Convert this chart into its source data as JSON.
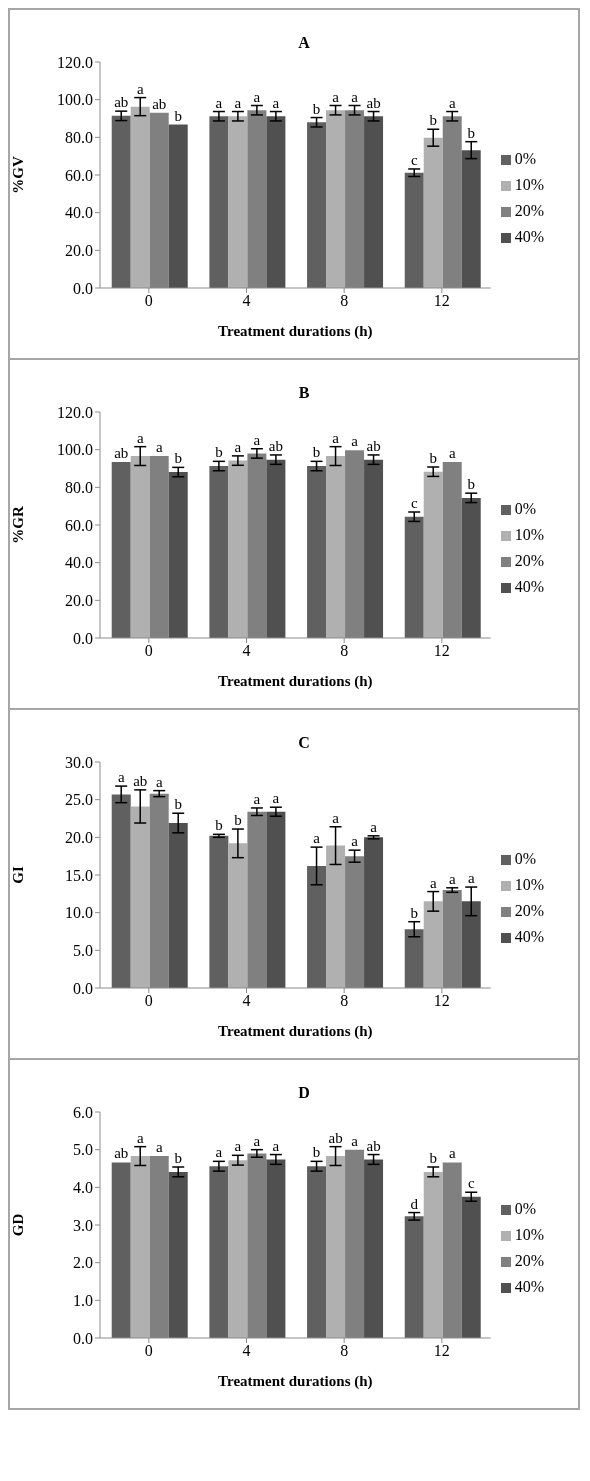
{
  "chart_data": [
    {
      "type": "bar",
      "title": "A",
      "xlabel": "Treatment durations (h)",
      "ylabel": "%GV",
      "categories": [
        "0",
        "4",
        "8",
        "12"
      ],
      "ylim": [
        0,
        120
      ],
      "yticks": [
        {
          "value": 0,
          "label": "0.0"
        },
        {
          "value": 20,
          "label": "20.0"
        },
        {
          "value": 40,
          "label": "40.0"
        },
        {
          "value": 60,
          "label": "60.0"
        },
        {
          "value": 80,
          "label": "80.0"
        },
        {
          "value": 100,
          "label": "100.0"
        },
        {
          "value": 120,
          "label": "120.0"
        }
      ],
      "legend": "right",
      "series": [
        {
          "name": "0%",
          "color": "#606060",
          "values": [
            91.4,
            91.2,
            88.0,
            61.2
          ],
          "errors": [
            2.5,
            2.5,
            2.5,
            2
          ],
          "value_labels": [
            "ab",
            "a",
            "b",
            "c"
          ]
        },
        {
          "name": "10%",
          "color": "#b0b0b0",
          "values": [
            96.3,
            91.2,
            94.4,
            79.8
          ],
          "errors": [
            4.8,
            2.5,
            2.5,
            4.5
          ],
          "value_labels": [
            "a",
            "a",
            "a",
            "b"
          ]
        },
        {
          "name": "20%",
          "color": "#808080",
          "values": [
            93.1,
            94.4,
            94.4,
            91.2
          ],
          "errors": [
            0,
            2.5,
            2.5,
            2.5
          ],
          "value_labels": [
            "ab",
            "a",
            "a",
            "a"
          ]
        },
        {
          "name": "40%",
          "color": "#505050",
          "values": [
            86.8,
            91.2,
            91.2,
            73.2
          ],
          "errors": [
            0,
            2.5,
            2.5,
            4.5
          ],
          "value_labels": [
            "b",
            "a",
            "ab",
            "b"
          ]
        }
      ]
    },
    {
      "type": "bar",
      "title": "B",
      "xlabel": "Treatment durations (h)",
      "ylabel": "%GR",
      "categories": [
        "0",
        "4",
        "8",
        "12"
      ],
      "ylim": [
        0,
        120
      ],
      "yticks": [
        {
          "value": 0,
          "label": "0.0"
        },
        {
          "value": 20,
          "label": "20.0"
        },
        {
          "value": 40,
          "label": "40.0"
        },
        {
          "value": 60,
          "label": "60.0"
        },
        {
          "value": 80,
          "label": "80.0"
        },
        {
          "value": 100,
          "label": "100.0"
        },
        {
          "value": 120,
          "label": "120.0"
        }
      ],
      "legend": "right",
      "series": [
        {
          "name": "0%",
          "color": "#606060",
          "values": [
            93.4,
            91.3,
            91.3,
            64.4
          ],
          "errors": [
            0,
            2.5,
            2.5,
            2.5
          ],
          "value_labels": [
            "ab",
            "b",
            "b",
            "c"
          ]
        },
        {
          "name": "10%",
          "color": "#b0b0b0",
          "values": [
            96.6,
            94.2,
            96.6,
            88.3
          ],
          "errors": [
            5,
            2.5,
            5,
            2.5
          ],
          "value_labels": [
            "a",
            "a",
            "a",
            "b"
          ]
        },
        {
          "name": "20%",
          "color": "#808080",
          "values": [
            96.6,
            98.0,
            99.7,
            93.4
          ],
          "errors": [
            0,
            2.5,
            0,
            0
          ],
          "value_labels": [
            "a",
            "a",
            "a",
            "a"
          ]
        },
        {
          "name": "40%",
          "color": "#505050",
          "values": [
            88.1,
            94.7,
            94.7,
            74.4
          ],
          "errors": [
            2.5,
            2.5,
            2.5,
            2.5
          ],
          "value_labels": [
            "b",
            "ab",
            "ab",
            "b"
          ]
        }
      ]
    },
    {
      "type": "bar",
      "title": "C",
      "xlabel": "Treatment durations (h)",
      "ylabel": "GI",
      "categories": [
        "0",
        "4",
        "8",
        "12"
      ],
      "ylim": [
        0,
        30
      ],
      "yticks": [
        {
          "value": 0,
          "label": "0.0"
        },
        {
          "value": 5,
          "label": "5.0"
        },
        {
          "value": 10,
          "label": "10.0"
        },
        {
          "value": 15,
          "label": "15.0"
        },
        {
          "value": 20,
          "label": "20.0"
        },
        {
          "value": 25,
          "label": "25.0"
        },
        {
          "value": 30,
          "label": "30.0"
        }
      ],
      "legend": "right",
      "series": [
        {
          "name": "0%",
          "color": "#606060",
          "values": [
            25.7,
            20.2,
            16.2,
            7.8
          ],
          "errors": [
            1.1,
            0.2,
            2.5,
            1.0
          ],
          "value_labels": [
            "a",
            "b",
            "a",
            "b"
          ]
        },
        {
          "name": "10%",
          "color": "#b0b0b0",
          "values": [
            24.1,
            19.2,
            18.9,
            11.5
          ],
          "errors": [
            2.2,
            1.9,
            2.5,
            1.3
          ],
          "value_labels": [
            "ab",
            "b",
            "a",
            "a"
          ]
        },
        {
          "name": "20%",
          "color": "#808080",
          "values": [
            25.8,
            23.4,
            17.5,
            13.0
          ],
          "errors": [
            0.4,
            0.5,
            0.8,
            0.3
          ],
          "value_labels": [
            "a",
            "a",
            "a",
            "a"
          ]
        },
        {
          "name": "40%",
          "color": "#505050",
          "values": [
            21.9,
            23.4,
            20.0,
            11.5
          ],
          "errors": [
            1.3,
            0.6,
            0.2,
            1.9
          ],
          "value_labels": [
            "b",
            "a",
            "a",
            "a"
          ]
        }
      ]
    },
    {
      "type": "bar",
      "title": "D",
      "xlabel": "Treatment durations (h)",
      "ylabel": "GD",
      "categories": [
        "0",
        "4",
        "8",
        "12"
      ],
      "ylim": [
        0,
        6
      ],
      "yticks": [
        {
          "value": 0,
          "label": "0.0"
        },
        {
          "value": 1,
          "label": "1.0"
        },
        {
          "value": 2,
          "label": "2.0"
        },
        {
          "value": 3,
          "label": "3.0"
        },
        {
          "value": 4,
          "label": "4.0"
        },
        {
          "value": 5,
          "label": "5.0"
        },
        {
          "value": 6,
          "label": "6.0"
        }
      ],
      "legend": "right",
      "series": [
        {
          "name": "0%",
          "color": "#606060",
          "values": [
            4.66,
            4.56,
            4.56,
            3.23
          ],
          "errors": [
            0,
            0.13,
            0.13,
            0.1
          ],
          "value_labels": [
            "ab",
            "a",
            "b",
            "d"
          ]
        },
        {
          "name": "10%",
          "color": "#b0b0b0",
          "values": [
            4.83,
            4.72,
            4.83,
            4.41
          ],
          "errors": [
            0.25,
            0.13,
            0.25,
            0.13
          ],
          "value_labels": [
            "a",
            "a",
            "ab",
            "b"
          ]
        },
        {
          "name": "20%",
          "color": "#808080",
          "values": [
            4.83,
            4.9,
            5.0,
            4.66
          ],
          "errors": [
            0,
            0.1,
            0,
            0
          ],
          "value_labels": [
            "a",
            "a",
            "a",
            "a"
          ]
        },
        {
          "name": "40%",
          "color": "#505050",
          "values": [
            4.41,
            4.74,
            4.74,
            3.75
          ],
          "errors": [
            0.13,
            0.13,
            0.13,
            0.12
          ],
          "value_labels": [
            "b",
            "a",
            "ab",
            "c"
          ]
        }
      ]
    }
  ]
}
